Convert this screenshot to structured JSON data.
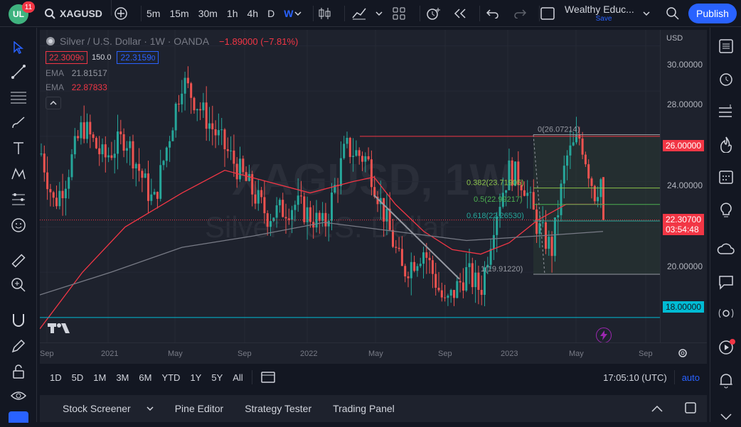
{
  "topbar": {
    "notifications": "11",
    "symbol": "XAGUSD",
    "timeframes": [
      "5m",
      "15m",
      "30m",
      "1h",
      "4h",
      "D",
      "W"
    ],
    "active_timeframe": "W",
    "layout_name": "Wealthy Educ...",
    "save_label": "Save",
    "publish_label": "Publish"
  },
  "legend": {
    "title": "Silver / U.S. Dollar · 1W · OANDA",
    "change": "−1.89000 (−7.81%)",
    "bid": "22.3009",
    "bid_small": "0",
    "spread": "150.0",
    "ask": "22.3159",
    "ask_small": "0",
    "ema1_label": "EMA",
    "ema1_value": "21.81517",
    "ema2_label": "EMA",
    "ema2_value": "22.87833"
  },
  "yaxis": {
    "currency": "USD",
    "ticks": [
      "30.00000",
      "28.00000",
      "24.00000",
      "20.00000"
    ],
    "level_26": "26.00000",
    "level_18": "18.00000",
    "last_price": "22.30700",
    "countdown": "03:54:48"
  },
  "xaxis": {
    "ticks": [
      "Sep",
      "2021",
      "May",
      "Sep",
      "2022",
      "May",
      "Sep",
      "2023",
      "May",
      "Sep"
    ]
  },
  "fib": {
    "l0": "0(26.07214)",
    "l0382": "0.382(23.71905)",
    "l05": "0.5(22.99217)",
    "l0618": "0.618(22.26530)",
    "l1": "1(19.91220)"
  },
  "watermark": {
    "ticker": "XAGUSD, 1W",
    "name": "Silver / U.S. Dollar"
  },
  "bottombar": {
    "ranges": [
      "1D",
      "5D",
      "1M",
      "3M",
      "6M",
      "YTD",
      "1Y",
      "5Y",
      "All"
    ],
    "time": "17:05:10 (UTC)",
    "scale": "auto"
  },
  "panels": [
    "Stock Screener",
    "Pine Editor",
    "Strategy Tester",
    "Trading Panel"
  ],
  "colors": {
    "bull": "#26a69a",
    "bear": "#ef5350",
    "ema_fast": "#f23645",
    "ema_slow": "#9598a1",
    "support": "#00bcd4",
    "resistance": "#f23645",
    "accent": "#2962ff"
  }
}
